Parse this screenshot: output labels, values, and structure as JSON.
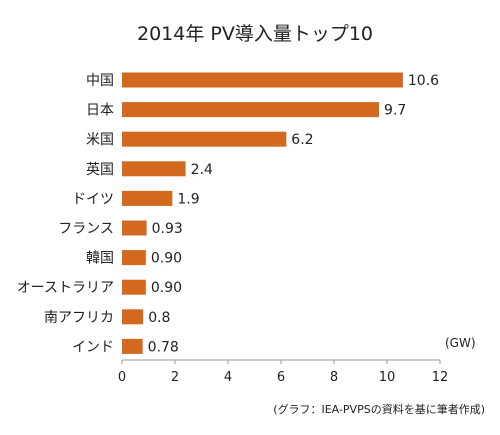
{
  "chart_data": {
    "type": "bar",
    "orientation": "horizontal",
    "title": "2014年 PV導入量トップ10",
    "unit_label": "(GW)",
    "source": "(グラフ：IEA-PVPSの資料を基に筆者作成)",
    "categories": [
      "中国",
      "日本",
      "米国",
      "英国",
      "ドイツ",
      "フランス",
      "韓国",
      "オーストラリア",
      "南アフリカ",
      "インド"
    ],
    "values": [
      10.6,
      9.7,
      6.2,
      2.4,
      1.9,
      0.93,
      0.9,
      0.9,
      0.8,
      0.78
    ],
    "value_labels": [
      "10.6",
      "9.7",
      "6.2",
      "2.4",
      "1.9",
      "0.93",
      "0.90",
      "0.90",
      "0.8",
      "0.78"
    ],
    "xlim": [
      0,
      12
    ],
    "xticks": [
      "0",
      "2",
      "4",
      "6",
      "8",
      "10",
      "12"
    ],
    "bar_color": "#D2691E",
    "grid": false,
    "legend": "none"
  }
}
